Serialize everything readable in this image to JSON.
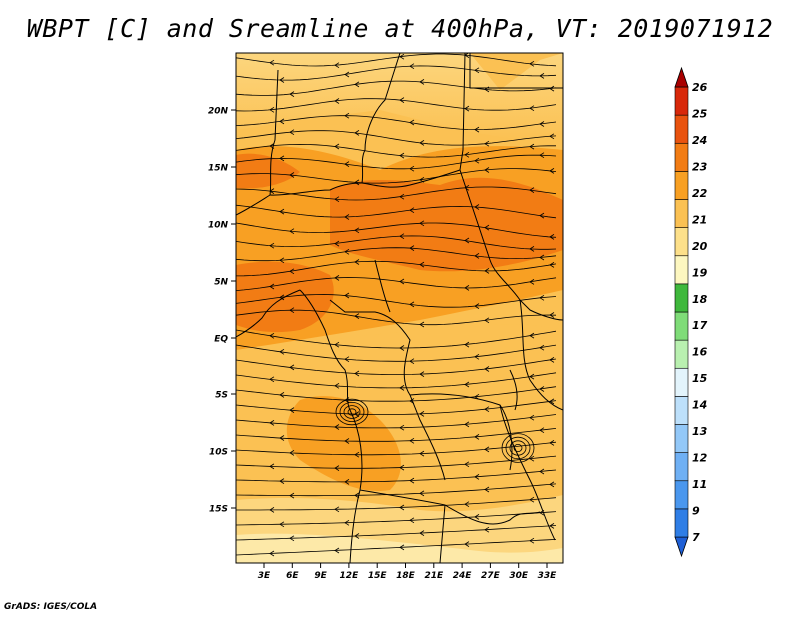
{
  "title": "WBPT [C] and Sreamline at 400hPa, VT: 2019071912",
  "footer": "GrADS: IGES/COLA",
  "map": {
    "lat_labels": [
      "20N",
      "15N",
      "10N",
      "5N",
      "EQ",
      "5S",
      "10S",
      "15S"
    ],
    "lon_labels": [
      "3E",
      "6E",
      "9E",
      "12E",
      "15E",
      "18E",
      "21E",
      "24E",
      "27E",
      "30E",
      "33E"
    ]
  },
  "colorbar": {
    "labels": [
      "7",
      "9",
      "11",
      "12",
      "13",
      "14",
      "15",
      "16",
      "17",
      "18",
      "19",
      "20",
      "21",
      "22",
      "23",
      "24",
      "25",
      "26"
    ],
    "colors": [
      "#1e5fd6",
      "#2f7ee6",
      "#4a97ee",
      "#6fb0f4",
      "#93c8f8",
      "#bde0fb",
      "#e3f4fc",
      "#b9f0b0",
      "#7fdc78",
      "#3fb83c",
      "#fdf7c0",
      "#fde08a",
      "#fbc153",
      "#f8a023",
      "#f27c14",
      "#e9530f",
      "#d8280a",
      "#b50600"
    ],
    "colors_note_top": "#a80000"
  }
}
